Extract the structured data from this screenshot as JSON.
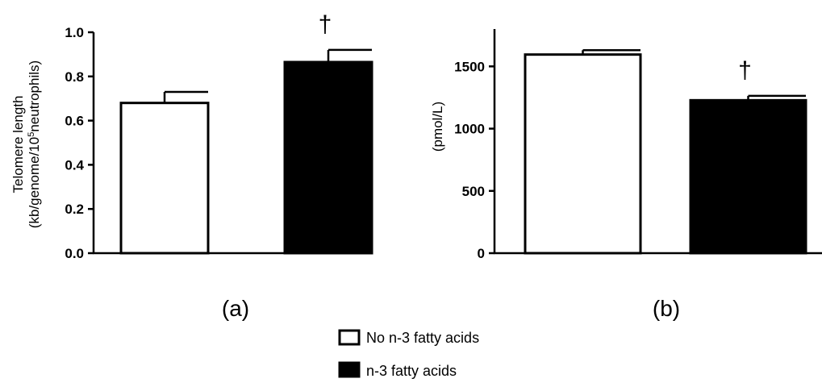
{
  "chart_data": [
    {
      "type": "bar",
      "panel_label": "(a)",
      "ylabel_line1": "Telomere length",
      "ylabel_line2_prefix": "(kb/genome/10",
      "ylabel_line2_sup": "5",
      "ylabel_line2_suffix": "neutrophils)",
      "ylim": [
        0,
        1.0
      ],
      "ticks": [
        {
          "value": 0,
          "label": "0.0"
        },
        {
          "value": 0.2,
          "label": "0.2"
        },
        {
          "value": 0.4,
          "label": "0.4"
        },
        {
          "value": 0.6,
          "label": "0.6"
        },
        {
          "value": 0.8,
          "label": "0.8"
        },
        {
          "value": 1.0,
          "label": "1.0"
        }
      ],
      "series": [
        {
          "name": "No n-3 fatty acids",
          "value": 0.68,
          "error": 0.05,
          "fill": "#ffffff",
          "marker": ""
        },
        {
          "name": "n-3 fatty acids",
          "value": 0.865,
          "error": 0.055,
          "fill": "#000000",
          "marker": "†"
        }
      ]
    },
    {
      "type": "bar",
      "panel_label": "(b)",
      "ylabel": "(pmol/L)",
      "ylim": [
        0,
        1800
      ],
      "ticks": [
        {
          "value": 0,
          "label": "0"
        },
        {
          "value": 500,
          "label": "500"
        },
        {
          "value": 1000,
          "label": "1000"
        },
        {
          "value": 1500,
          "label": "1500"
        }
      ],
      "series": [
        {
          "name": "No n-3 fatty acids",
          "value": 1595,
          "error": 35,
          "fill": "#ffffff",
          "marker": ""
        },
        {
          "name": "n-3 fatty acids",
          "value": 1228,
          "error": 35,
          "fill": "#000000",
          "marker": "†"
        }
      ]
    }
  ],
  "legend": [
    {
      "label": "No n-3 fatty acids",
      "fill": "#ffffff"
    },
    {
      "label": "n-3 fatty acids",
      "fill": "#000000"
    }
  ]
}
